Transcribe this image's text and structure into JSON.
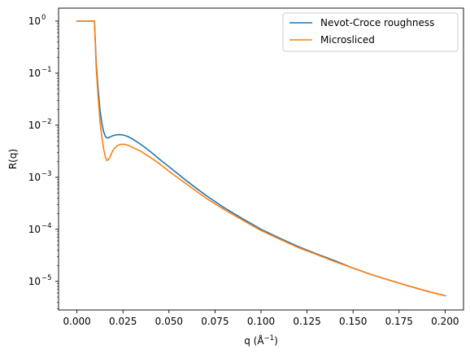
{
  "chart_data": {
    "type": "line",
    "xlabel": "q (Å$^{-1}$)",
    "xlabel_main": "q (Å",
    "xlabel_sup": "−1",
    "xlabel_close": ")",
    "ylabel": "R(q)",
    "xlim": [
      -0.01,
      0.21
    ],
    "ylim_log10": [
      -5.55,
      0.25
    ],
    "yscale": "log",
    "grid": false,
    "legend_position": "top-right",
    "x_ticks": [
      {
        "value": 0.0,
        "label": "0.000"
      },
      {
        "value": 0.025,
        "label": "0.025"
      },
      {
        "value": 0.05,
        "label": "0.050"
      },
      {
        "value": 0.075,
        "label": "0.075"
      },
      {
        "value": 0.1,
        "label": "0.100"
      },
      {
        "value": 0.125,
        "label": "0.125"
      },
      {
        "value": 0.15,
        "label": "0.150"
      },
      {
        "value": 0.175,
        "label": "0.175"
      },
      {
        "value": 0.2,
        "label": "0.200"
      }
    ],
    "y_ticks": [
      {
        "exp": 0,
        "label": "10",
        "sup": "0"
      },
      {
        "exp": -1,
        "label": "10",
        "sup": "−1"
      },
      {
        "exp": -2,
        "label": "10",
        "sup": "−2"
      },
      {
        "exp": -3,
        "label": "10",
        "sup": "−3"
      },
      {
        "exp": -4,
        "label": "10",
        "sup": "−4"
      },
      {
        "exp": -5,
        "label": "10",
        "sup": "−5"
      }
    ],
    "series": [
      {
        "name": "Nevot-Croce roughness",
        "color": "#1f77b4",
        "x": [
          0.0,
          0.002,
          0.004,
          0.006,
          0.008,
          0.0095,
          0.0105,
          0.0115,
          0.0125,
          0.0135,
          0.0145,
          0.0155,
          0.0165,
          0.0175,
          0.019,
          0.021,
          0.023,
          0.025,
          0.0275,
          0.03,
          0.035,
          0.04,
          0.045,
          0.05,
          0.06,
          0.07,
          0.08,
          0.09,
          0.1,
          0.11,
          0.12,
          0.13,
          0.14,
          0.15,
          0.16,
          0.17,
          0.18,
          0.19,
          0.2
        ],
        "y": [
          1.0,
          1.0,
          1.0,
          1.0,
          1.0,
          1.0,
          0.15,
          0.05,
          0.02,
          0.011,
          0.0075,
          0.006,
          0.0057,
          0.0058,
          0.0062,
          0.0065,
          0.0066,
          0.0065,
          0.0061,
          0.0055,
          0.0042,
          0.0031,
          0.0022,
          0.0016,
          0.00083,
          0.00045,
          0.00026,
          0.00016,
          0.0001,
          6.8e-05,
          4.7e-05,
          3.4e-05,
          2.5e-05,
          1.8e-05,
          1.35e-05,
          1.05e-05,
          8.2e-06,
          6.5e-06,
          5.3e-06
        ]
      },
      {
        "name": "Microsliced",
        "color": "#ff7f0e",
        "x": [
          0.0,
          0.002,
          0.004,
          0.006,
          0.008,
          0.0095,
          0.0105,
          0.0115,
          0.0125,
          0.0135,
          0.0145,
          0.0155,
          0.0163,
          0.0172,
          0.018,
          0.019,
          0.02,
          0.022,
          0.024,
          0.026,
          0.028,
          0.03,
          0.035,
          0.04,
          0.045,
          0.05,
          0.06,
          0.07,
          0.08,
          0.09,
          0.1,
          0.11,
          0.12,
          0.13,
          0.14,
          0.15,
          0.16,
          0.17,
          0.18,
          0.19,
          0.2
        ],
        "y": [
          1.0,
          1.0,
          1.0,
          1.0,
          1.0,
          1.0,
          0.12,
          0.035,
          0.012,
          0.006,
          0.0035,
          0.0024,
          0.0021,
          0.0022,
          0.0025,
          0.003,
          0.0035,
          0.0041,
          0.0043,
          0.0043,
          0.0041,
          0.0038,
          0.0031,
          0.0024,
          0.0018,
          0.0013,
          0.00072,
          0.0004,
          0.00024,
          0.00015,
          9.5e-05,
          6.5e-05,
          4.5e-05,
          3.3e-05,
          2.4e-05,
          1.8e-05,
          1.35e-05,
          1.05e-05,
          8.2e-06,
          6.5e-06,
          5.3e-06
        ]
      }
    ]
  }
}
